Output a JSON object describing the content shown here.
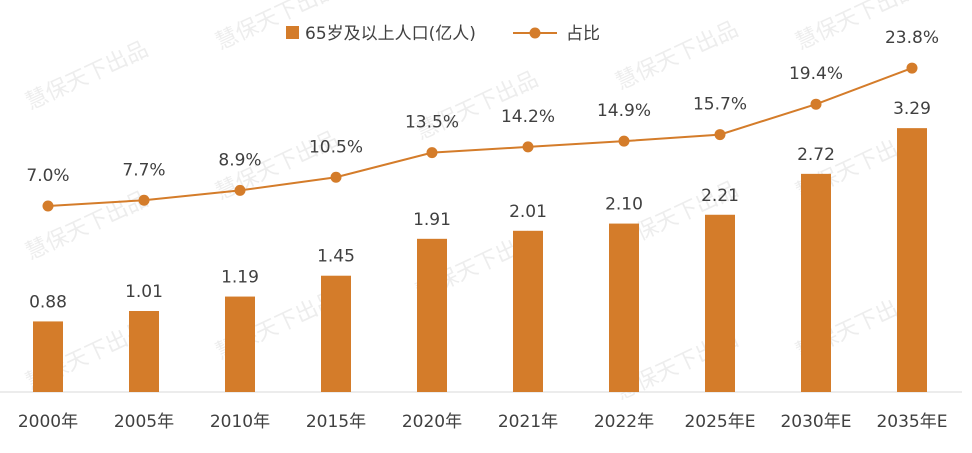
{
  "chart_data": {
    "type": "bar+line",
    "categories": [
      "2000年",
      "2005年",
      "2010年",
      "2015年",
      "2020年",
      "2021年",
      "2022年",
      "2025年E",
      "2030年E",
      "2035年E"
    ],
    "series": [
      {
        "name": "65岁及以上人口(亿人)",
        "type": "bar",
        "values": [
          0.88,
          1.01,
          1.19,
          1.45,
          1.91,
          2.01,
          2.1,
          2.21,
          2.72,
          3.29
        ],
        "labels": [
          "0.88",
          "1.01",
          "1.19",
          "1.45",
          "1.91",
          "2.01",
          "2.10",
          "2.21",
          "2.72",
          "3.29"
        ]
      },
      {
        "name": "占比",
        "type": "line",
        "values": [
          7.0,
          7.7,
          8.9,
          10.5,
          13.5,
          14.2,
          14.9,
          15.7,
          19.4,
          23.8
        ],
        "labels": [
          "7.0%",
          "7.7%",
          "8.9%",
          "10.5%",
          "13.5%",
          "14.2%",
          "14.9%",
          "15.7%",
          "19.4%",
          "23.8%"
        ]
      }
    ],
    "legend_position": "top-center",
    "grid": false,
    "color": "#D47C2A",
    "watermark": "慧保天下出品"
  }
}
